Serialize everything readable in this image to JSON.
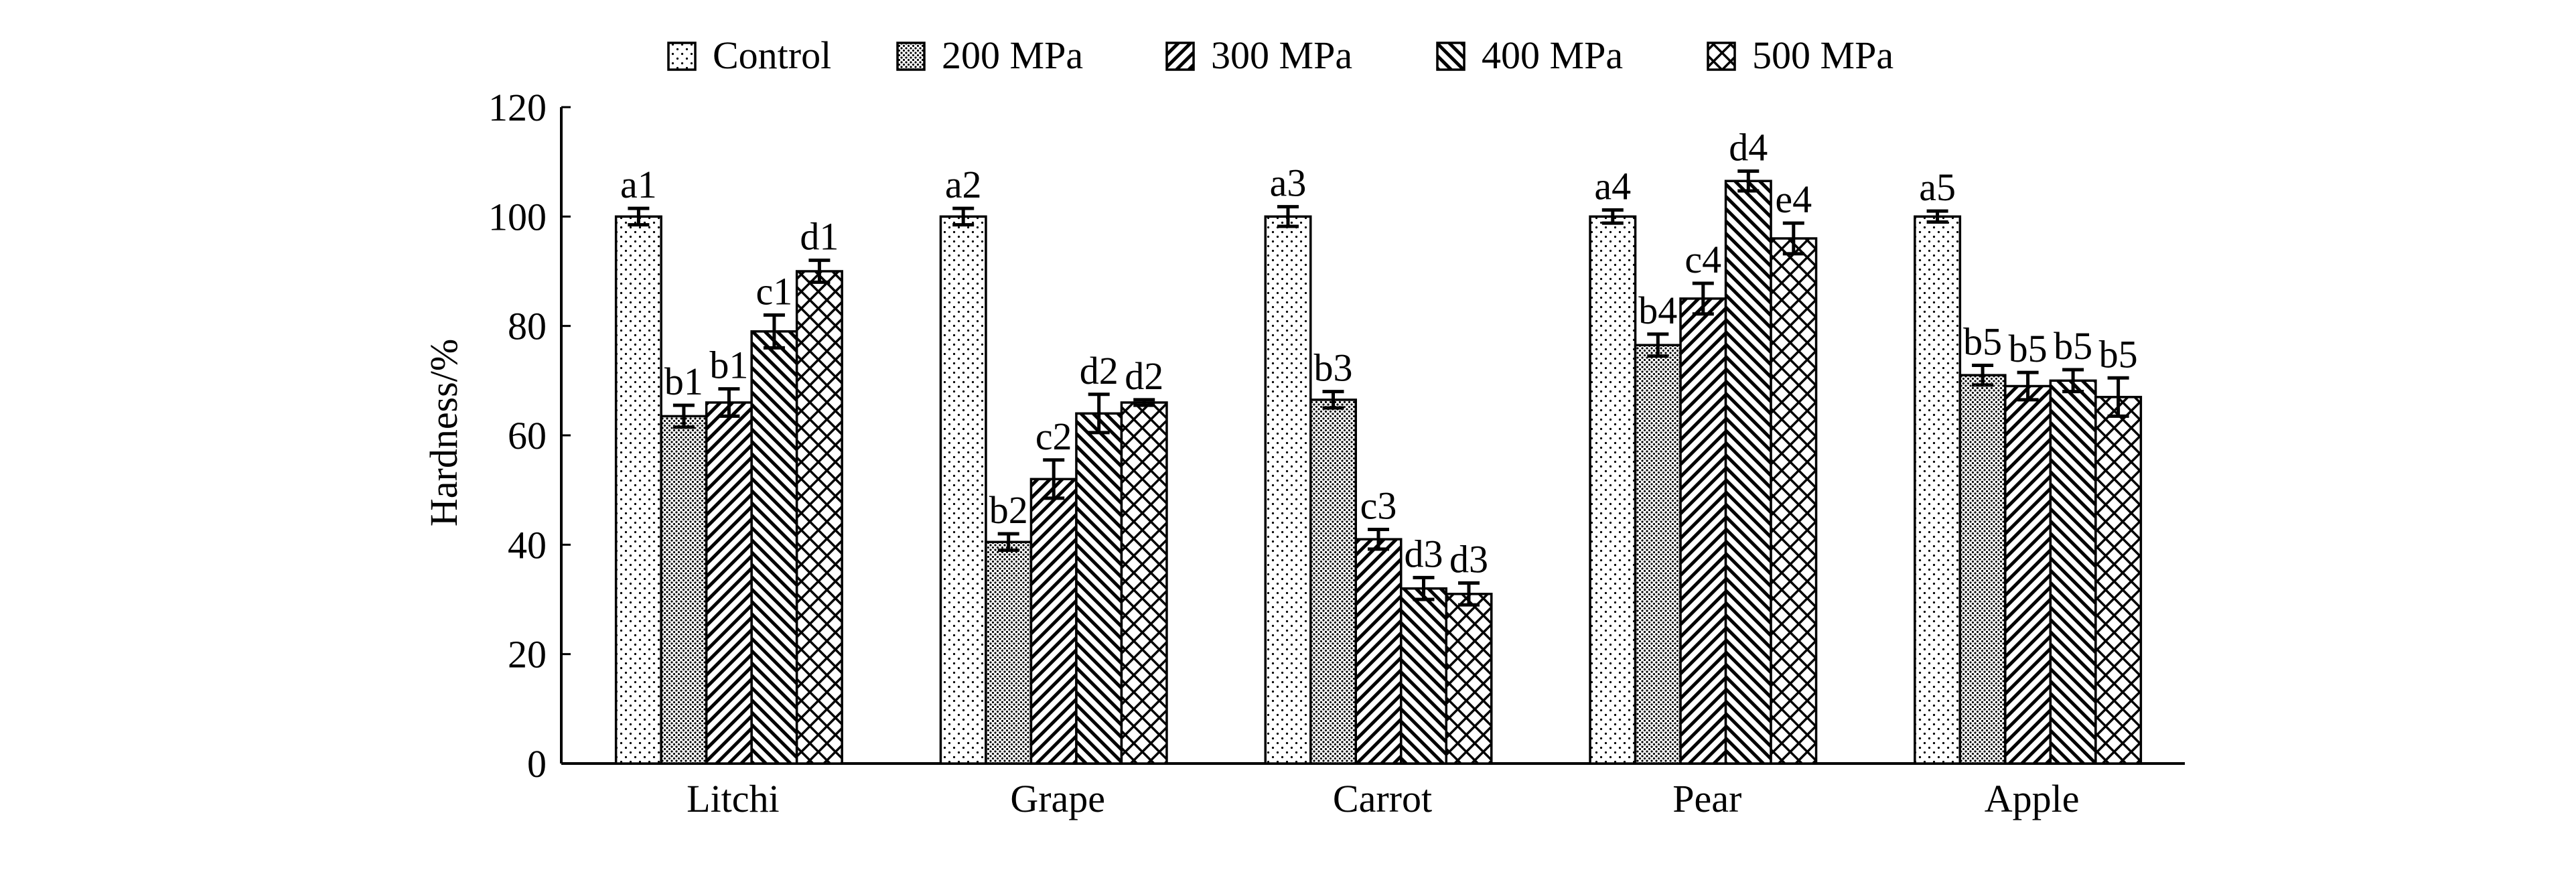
{
  "chart_data": {
    "type": "bar",
    "ylabel": "Hardness/%",
    "xlabel": "",
    "ylim": [
      0,
      120
    ],
    "yticks": [
      0,
      20,
      40,
      60,
      80,
      100,
      120
    ],
    "categories": [
      "Litchi",
      "Grape",
      "Carrot",
      "Pear",
      "Apple"
    ],
    "legend_position": "top",
    "series": [
      {
        "name": "Control",
        "pattern": "dots",
        "values": [
          100,
          100,
          100,
          100,
          100
        ],
        "errors": [
          1.5,
          1.5,
          1.8,
          1.2,
          1.0
        ],
        "labels": [
          "a1",
          "a2",
          "a3",
          "a4",
          "a5"
        ]
      },
      {
        "name": "200 MPa",
        "pattern": "dense-dots",
        "values": [
          63.5,
          40.5,
          66.5,
          76.5,
          71
        ],
        "errors": [
          2.0,
          1.5,
          1.5,
          2.0,
          1.8
        ],
        "labels": [
          "b1",
          "b2",
          "b3",
          "b4",
          "b5"
        ]
      },
      {
        "name": "300 MPa",
        "pattern": "forward-hatch",
        "values": [
          66,
          52,
          41,
          85,
          69
        ],
        "errors": [
          2.5,
          3.5,
          1.8,
          2.8,
          2.5
        ],
        "labels": [
          "b1",
          "c2",
          "c3",
          "c4",
          "b5"
        ]
      },
      {
        "name": "400 MPa",
        "pattern": "back-hatch",
        "values": [
          79,
          64,
          32,
          106.5,
          70
        ],
        "errors": [
          3.0,
          3.5,
          2.0,
          1.8,
          2.0
        ],
        "labels": [
          "c1",
          "d2",
          "d3",
          "d4",
          "b5"
        ]
      },
      {
        "name": "500 MPa",
        "pattern": "crosshatch",
        "values": [
          90,
          66,
          31,
          96,
          67
        ],
        "errors": [
          2.0,
          0.5,
          2.0,
          2.8,
          3.5
        ],
        "labels": [
          "d1",
          "d2",
          "d3",
          "e4",
          "b5"
        ]
      }
    ]
  }
}
